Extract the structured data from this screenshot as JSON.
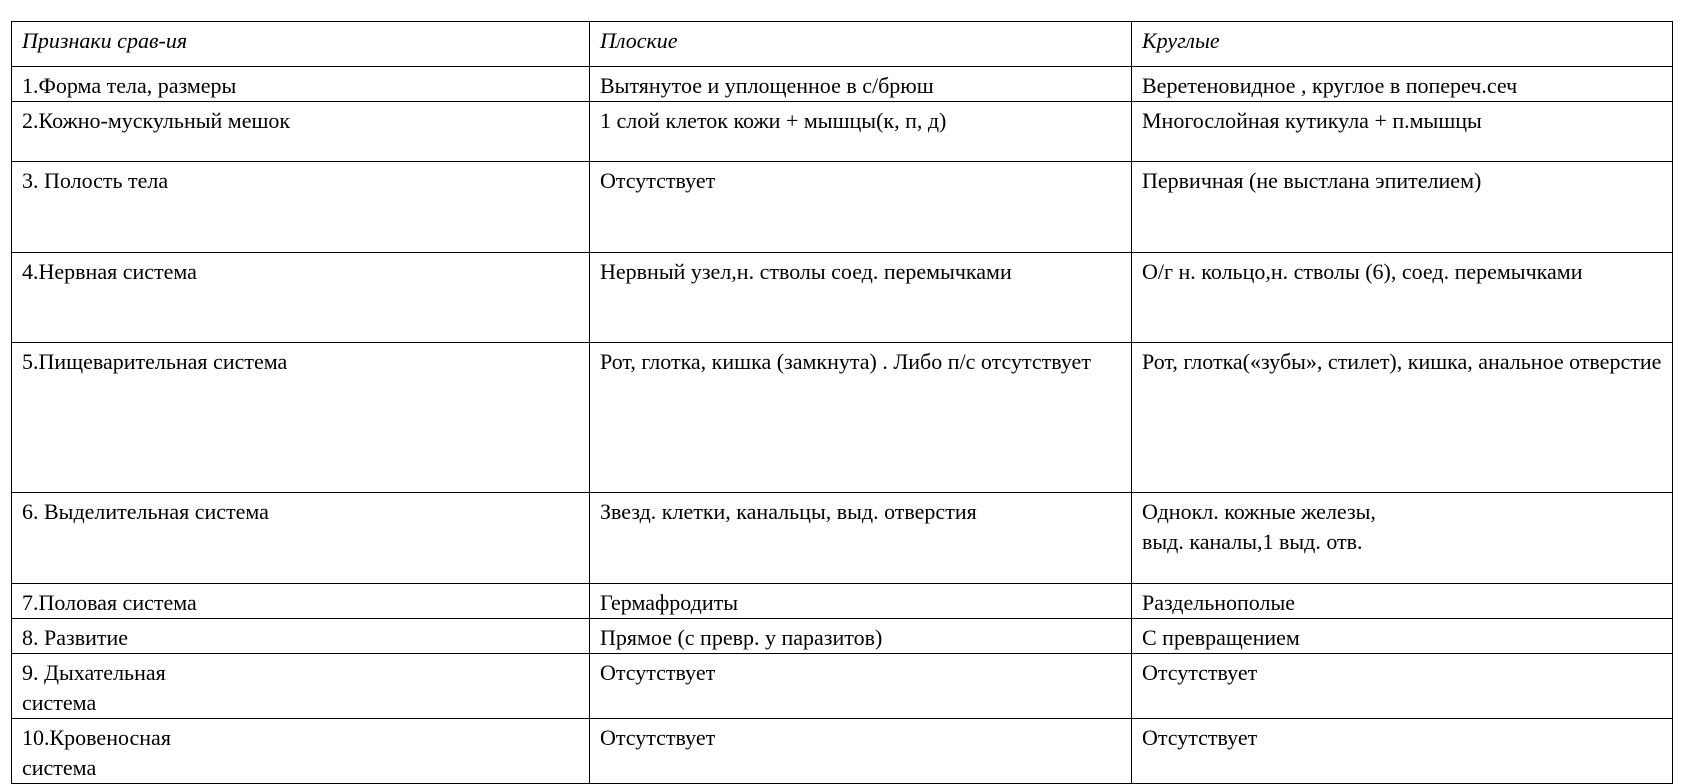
{
  "table": {
    "header": [
      "Признаки срав-ия",
      "Плоские",
      "Круглые"
    ],
    "rows": [
      [
        "1.Форма тела, размеры",
        "Вытянутое и уплощенное в с/брюш",
        "Веретеновидное , круглое в попереч.сеч"
      ],
      [
        "2.Кожно-мускульный мешок",
        "1 слой клеток кожи + мышцы(к, п, д)",
        "Многослойная кутикула + п.мышцы"
      ],
      [
        "3. Полость тела",
        "Отсутствует",
        "Первичная (не выстлана эпителием)"
      ],
      [
        "4.Нервная система",
        "Нервный узел,н. стволы соед. перемычками",
        "О/г н. кольцо,н. стволы (6), соед. перемычками"
      ],
      [
        "5.Пищеварительная система",
        "Рот, глотка, кишка (замкнута) . Либо п/с отсутствует",
        "Рот, глотка(«зубы», стилет), кишка, анальное отверстие"
      ],
      [
        "6. Выделительная система",
        "Звезд. клетки, канальцы, выд. отверстия",
        "Однокл. кожные железы,\nвыд. каналы,1 выд. отв."
      ],
      [
        "7.Половая система",
        "Гермафродиты",
        "Раздельнополые"
      ],
      [
        "8. Развитие",
        "Прямое (с превр. у паразитов)",
        "С превращением"
      ],
      [
        "9. Дыхательная\nсистема",
        " Отсутствует",
        "Отсутствует"
      ],
      [
        "10.Кровеносная\nсистема",
        "Отсутствует",
        "Отсутствует"
      ]
    ]
  }
}
